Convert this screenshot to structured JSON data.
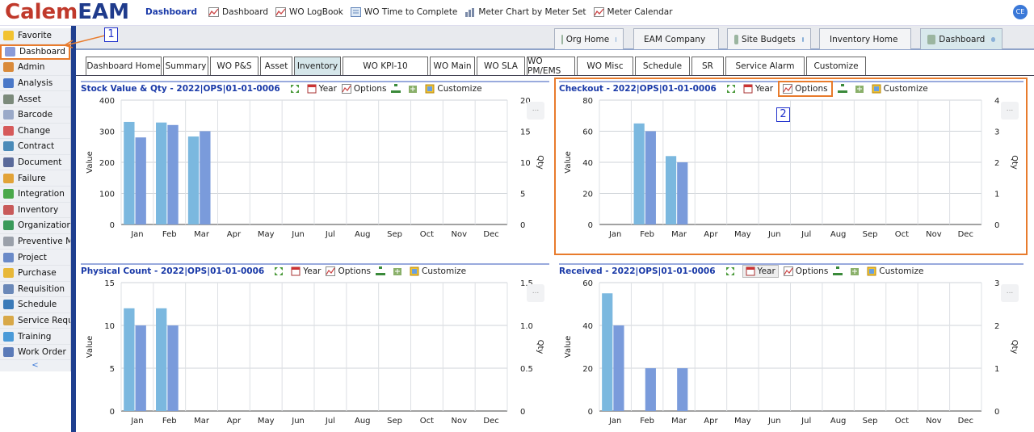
{
  "app": {
    "logo_a": "Calem",
    "logo_b": "EAM",
    "user_initials": "CE"
  },
  "topnav": [
    {
      "label": "Dashboard",
      "active": true
    },
    {
      "label": "Dashboard",
      "icon": "chart-icon"
    },
    {
      "label": "WO LogBook",
      "icon": "chart-icon"
    },
    {
      "label": "WO Time to Complete",
      "icon": "list-icon"
    },
    {
      "label": "Meter Chart by Meter Set",
      "icon": "bar-chart-icon"
    },
    {
      "label": "Meter Calendar",
      "icon": "chart-icon"
    }
  ],
  "sidebar": {
    "items": [
      {
        "label": "Favorite",
        "color": "#f2c230"
      },
      {
        "label": "Dashboard",
        "color": "#8a9bd8",
        "selected": true
      },
      {
        "label": "Admin",
        "color": "#d98a3a"
      },
      {
        "label": "Analysis",
        "color": "#4a78c8"
      },
      {
        "label": "Asset",
        "color": "#7b8a7b"
      },
      {
        "label": "Barcode",
        "color": "#9aa9c8"
      },
      {
        "label": "Change",
        "color": "#d65a5a"
      },
      {
        "label": "Contract",
        "color": "#4a8ab8"
      },
      {
        "label": "Document",
        "color": "#5a6a9a"
      },
      {
        "label": "Failure",
        "color": "#e2a338"
      },
      {
        "label": "Integration",
        "color": "#4aa84a"
      },
      {
        "label": "Inventory",
        "color": "#c85a5a"
      },
      {
        "label": "Organization",
        "color": "#3a9a5a"
      },
      {
        "label": "Preventive Main",
        "color": "#9aa0aa"
      },
      {
        "label": "Project",
        "color": "#6a8ac8"
      },
      {
        "label": "Purchase",
        "color": "#e8b838"
      },
      {
        "label": "Requisition",
        "color": "#6a88b8"
      },
      {
        "label": "Schedule",
        "color": "#3a7ab8"
      },
      {
        "label": "Service Request",
        "color": "#d8a848"
      },
      {
        "label": "Training",
        "color": "#4a9ad8"
      },
      {
        "label": "Work Order",
        "color": "#5a7ab8"
      }
    ],
    "collapse": "<"
  },
  "app_tabs": [
    {
      "label": "Org Home"
    },
    {
      "label": "EAM Company"
    },
    {
      "label": "Site Budgets"
    },
    {
      "label": "Inventory Home"
    },
    {
      "label": "Dashboard",
      "selected": true
    }
  ],
  "sub_tabs": [
    {
      "label": "Dashboard Home"
    },
    {
      "label": "Summary"
    },
    {
      "label": "WO P&S"
    },
    {
      "label": "Asset"
    },
    {
      "label": "Inventory",
      "selected": true
    },
    {
      "label": "WO KPI-10"
    },
    {
      "label": "WO Main"
    },
    {
      "label": "WO SLA"
    },
    {
      "label": "WO PM/EMS"
    },
    {
      "label": "WO Misc"
    },
    {
      "label": "Schedule"
    },
    {
      "label": "SR"
    },
    {
      "label": "Service Alarm"
    },
    {
      "label": "Customize"
    }
  ],
  "toolbar": {
    "year": "Year",
    "options": "Options",
    "customize": "Customize",
    "more": "..."
  },
  "annotations": {
    "one": "1",
    "two": "2"
  },
  "colors": {
    "bar_light": "#7bb8df",
    "bar_dark": "#7a9bdb",
    "accent": "#e87b2c",
    "title_blue": "#1a3aa8"
  },
  "panels": [
    {
      "title": "Stock Value & Qty - 2022|OPS|01-01-0006",
      "chart_data": {
        "type": "bar",
        "categories": [
          "Jan",
          "Feb",
          "Mar",
          "Apr",
          "May",
          "Jun",
          "Jul",
          "Aug",
          "Sep",
          "Oct",
          "Nov",
          "Dec"
        ],
        "series": [
          {
            "values": [
              330,
              328,
              283,
              0,
              0,
              0,
              0,
              0,
              0,
              0,
              0,
              0
            ]
          },
          {
            "values": [
              280,
              320,
              300,
              0,
              0,
              0,
              0,
              0,
              0,
              0,
              0,
              0
            ]
          }
        ],
        "ylabel": "Value",
        "ylim": [
          0,
          400
        ],
        "yticks": [
          "0",
          "100",
          "200",
          "300",
          "400"
        ],
        "y2label": "Qty",
        "y2ticks": [
          "0",
          "5",
          "10",
          "15",
          "20"
        ],
        "grid": true
      }
    },
    {
      "title": "Checkout - 2022|OPS|01-01-0006",
      "chart_data": {
        "type": "bar",
        "categories": [
          "Jan",
          "Feb",
          "Mar",
          "Apr",
          "May",
          "Jun",
          "Jul",
          "Aug",
          "Sep",
          "Oct",
          "Nov",
          "Dec"
        ],
        "series": [
          {
            "values": [
              0,
              65,
              44,
              0,
              0,
              0,
              0,
              0,
              0,
              0,
              0,
              0
            ]
          },
          {
            "values": [
              0,
              60,
              40,
              0,
              0,
              0,
              0,
              0,
              0,
              0,
              0,
              0
            ]
          }
        ],
        "ylabel": "Value",
        "ylim": [
          0,
          80
        ],
        "yticks": [
          "0",
          "20",
          "40",
          "60",
          "80"
        ],
        "y2label": "Qty",
        "y2ticks": [
          "0",
          "1",
          "2",
          "3",
          "4"
        ],
        "grid": true
      }
    },
    {
      "title": "Physical Count - 2022|OPS|01-01-0006",
      "chart_data": {
        "type": "bar",
        "categories": [
          "Jan",
          "Feb",
          "Mar",
          "Apr",
          "May",
          "Jun",
          "Jul",
          "Aug",
          "Sep",
          "Oct",
          "Nov",
          "Dec"
        ],
        "series": [
          {
            "values": [
              12,
              12,
              0,
              0,
              0,
              0,
              0,
              0,
              0,
              0,
              0,
              0
            ]
          },
          {
            "values": [
              10,
              10,
              0,
              0,
              0,
              0,
              0,
              0,
              0,
              0,
              0,
              0
            ]
          }
        ],
        "ylabel": "Value",
        "ylim": [
          0,
          15
        ],
        "yticks": [
          "0",
          "5",
          "10",
          "15"
        ],
        "y2label": "Qty",
        "y2ticks": [
          "0",
          "0.5",
          "1.0",
          "1.5"
        ],
        "grid": true
      }
    },
    {
      "title": "Received - 2022|OPS|01-01-0006",
      "chart_data": {
        "type": "bar",
        "categories": [
          "Jan",
          "Feb",
          "Mar",
          "Apr",
          "May",
          "Jun",
          "Jul",
          "Aug",
          "Sep",
          "Oct",
          "Nov",
          "Dec"
        ],
        "series": [
          {
            "values": [
              55,
              0,
              0,
              0,
              0,
              0,
              0,
              0,
              0,
              0,
              0,
              0
            ]
          },
          {
            "values": [
              40,
              20,
              20,
              0,
              0,
              0,
              0,
              0,
              0,
              0,
              0,
              0
            ]
          }
        ],
        "ylabel": "Value",
        "ylim": [
          0,
          60
        ],
        "yticks": [
          "0",
          "20",
          "40",
          "60"
        ],
        "y2label": "Qty",
        "y2ticks": [
          "0",
          "1",
          "2",
          "3"
        ],
        "grid": true
      }
    }
  ]
}
